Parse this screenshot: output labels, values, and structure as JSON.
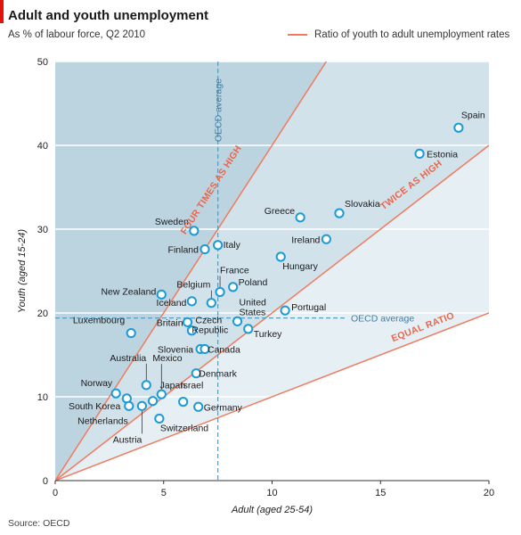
{
  "header": {
    "title": "Adult and youth unemployment",
    "subtitle": "As % of labour force, Q2 2010",
    "legend_label": "Ratio of youth to adult unemployment rates",
    "source": "Source: OECD"
  },
  "colors": {
    "accent": "#e3120b",
    "ratio_line": "#f07b5f",
    "point_stroke": "#1b9bd6",
    "average_line": "#5a9bbf",
    "band_dark": "#bcd3e0",
    "band_mid": "#d2e2ea",
    "band_light": "#e6eff4"
  },
  "chart_data": {
    "type": "scatter",
    "xlabel": "Adult (aged 25-54)",
    "ylabel": "Youth (aged 15-24)",
    "xlim": [
      0,
      20
    ],
    "ylim": [
      0,
      50
    ],
    "x_ticks": [
      0,
      5,
      10,
      15,
      20
    ],
    "y_ticks": [
      0,
      10,
      20,
      30,
      40,
      50
    ],
    "grid": true,
    "points": [
      {
        "label": "Spain",
        "x": 18.6,
        "y": 42.1
      },
      {
        "label": "Estonia",
        "x": 16.8,
        "y": 39.0
      },
      {
        "label": "Slovakia",
        "x": 13.1,
        "y": 31.9
      },
      {
        "label": "Greece",
        "x": 11.3,
        "y": 31.4
      },
      {
        "label": "Ireland",
        "x": 12.5,
        "y": 28.8
      },
      {
        "label": "Hungary",
        "x": 10.4,
        "y": 26.7
      },
      {
        "label": "Sweden",
        "x": 6.4,
        "y": 29.8
      },
      {
        "label": "Italy",
        "x": 7.5,
        "y": 28.1
      },
      {
        "label": "Finland",
        "x": 6.9,
        "y": 27.6
      },
      {
        "label": "France",
        "x": 7.6,
        "y": 22.5
      },
      {
        "label": "Poland",
        "x": 8.2,
        "y": 23.1
      },
      {
        "label": "Belgium",
        "x": 7.2,
        "y": 21.2
      },
      {
        "label": "New Zealand",
        "x": 4.9,
        "y": 22.2
      },
      {
        "label": "Iceland",
        "x": 6.3,
        "y": 21.4
      },
      {
        "label": "United States",
        "x": 8.4,
        "y": 19.0
      },
      {
        "label": "Portugal",
        "x": 10.6,
        "y": 20.3
      },
      {
        "label": "Britain",
        "x": 6.1,
        "y": 18.9
      },
      {
        "label": "Czech Republic",
        "x": 6.3,
        "y": 17.9
      },
      {
        "label": "Turkey",
        "x": 8.9,
        "y": 18.1
      },
      {
        "label": "Luxembourg",
        "x": 3.5,
        "y": 17.6
      },
      {
        "label": "Slovenia",
        "x": 6.7,
        "y": 15.7
      },
      {
        "label": "Canada",
        "x": 6.9,
        "y": 15.7
      },
      {
        "label": "Denmark",
        "x": 6.5,
        "y": 12.8
      },
      {
        "label": "Australia",
        "x": 4.2,
        "y": 11.4
      },
      {
        "label": "Mexico",
        "x": 4.9,
        "y": 10.3
      },
      {
        "label": "Japan",
        "x": 4.5,
        "y": 9.5
      },
      {
        "label": "Norway",
        "x": 2.8,
        "y": 10.4
      },
      {
        "label": "South Korea",
        "x": 3.3,
        "y": 9.8
      },
      {
        "label": "Netherlands",
        "x": 3.4,
        "y": 8.9
      },
      {
        "label": "Israel",
        "x": 5.9,
        "y": 9.4
      },
      {
        "label": "Germany",
        "x": 6.6,
        "y": 8.8
      },
      {
        "label": "Switzerland",
        "x": 4.8,
        "y": 7.4
      },
      {
        "label": "Austria",
        "x": 4.0,
        "y": 8.9
      }
    ],
    "ratio_lines": [
      {
        "label": "FOUR TIMES AS HIGH",
        "ratio": 4
      },
      {
        "label": "TWICE AS HIGH",
        "ratio": 2
      },
      {
        "label": "EQUAL RATIO",
        "ratio": 1
      }
    ],
    "oecd_average": {
      "label": "OECD average",
      "x": 7.5,
      "y": 19.4
    }
  }
}
